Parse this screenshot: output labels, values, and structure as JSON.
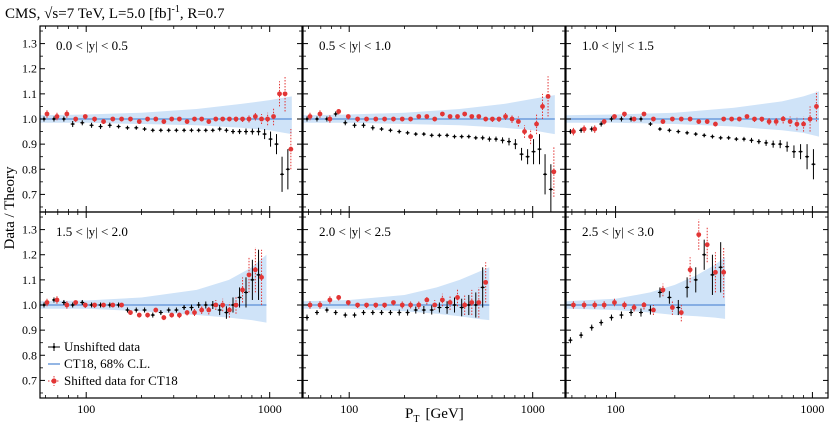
{
  "header": {
    "title": "CMS, √s=7 TeV, L=5.0 [fb]",
    "title_sup": "-1",
    "title_tail": ", R=0.7"
  },
  "axes": {
    "ylabel": "Data / Theory",
    "xlabel": "P",
    "xlabel_sub": "T",
    "xlabel_unit": "[GeV]",
    "ylim": [
      0.63,
      1.37
    ],
    "yticks": [
      0.7,
      0.8,
      0.9,
      1.0,
      1.1,
      1.2,
      1.3
    ],
    "xscale": "log",
    "xlim_panels": [
      [
        56,
        1500
      ],
      [
        56,
        1500
      ],
      [
        56,
        1200
      ]
    ],
    "xticks": [
      100,
      1000
    ]
  },
  "legend": {
    "placement": "bottom-left of panel 4",
    "entries": [
      {
        "key": "unshifted",
        "label": "Unshifted data",
        "color": "#000000"
      },
      {
        "key": "theory",
        "label": "CT18, 68% C.L.",
        "color": "#5b8fd6"
      },
      {
        "key": "shifted",
        "label": "Shifted data for CT18",
        "color": "#e23535"
      }
    ]
  },
  "colors": {
    "band": "#cfe3f8",
    "theory_line": "#5b8fd6",
    "unshifted": "#000000",
    "shifted": "#e23535",
    "shifted_err": "#e23535"
  },
  "chart_data": [
    {
      "type": "scatter",
      "label": "0.0 < |y| < 0.5",
      "x": [
        60,
        68,
        77,
        86,
        97,
        109,
        122,
        137,
        153,
        171,
        191,
        212,
        235,
        260,
        287,
        316,
        348,
        382,
        418,
        457,
        499,
        544,
        592,
        643,
        698,
        757,
        820,
        886,
        956,
        1030,
        1110,
        1190,
        1280
      ],
      "unshifted": [
        1.0,
        1.0,
        1.0,
        0.98,
        0.985,
        0.975,
        0.97,
        0.975,
        0.97,
        0.965,
        0.965,
        0.96,
        0.955,
        0.955,
        0.955,
        0.955,
        0.955,
        0.955,
        0.955,
        0.955,
        0.955,
        0.96,
        0.955,
        0.95,
        0.95,
        0.95,
        0.95,
        0.95,
        0.94,
        0.92,
        0.9,
        0.78,
        0.8
      ],
      "unshifted_err": [
        0.01,
        0.01,
        0.01,
        0.012,
        0.01,
        0.01,
        0.01,
        0.01,
        0.008,
        0.008,
        0.008,
        0.008,
        0.008,
        0.008,
        0.008,
        0.008,
        0.008,
        0.008,
        0.008,
        0.008,
        0.008,
        0.009,
        0.009,
        0.01,
        0.01,
        0.012,
        0.012,
        0.015,
        0.02,
        0.03,
        0.04,
        0.07,
        0.08
      ],
      "shifted": [
        1.02,
        1.01,
        1.02,
        1.0,
        1.01,
        1.0,
        0.99,
        1.0,
        1.0,
        1.0,
        0.99,
        1.0,
        1.0,
        0.99,
        1.0,
        1.0,
        0.99,
        1.0,
        1.0,
        0.99,
        1.0,
        1.0,
        1.0,
        1.0,
        1.0,
        1.0,
        1.01,
        1.0,
        1.0,
        1.01,
        1.1,
        1.1,
        0.88
      ],
      "shifted_err": [
        0.015,
        0.015,
        0.015,
        0.012,
        0.012,
        0.012,
        0.01,
        0.01,
        0.01,
        0.01,
        0.01,
        0.01,
        0.01,
        0.01,
        0.01,
        0.01,
        0.01,
        0.01,
        0.01,
        0.01,
        0.01,
        0.01,
        0.01,
        0.012,
        0.012,
        0.014,
        0.016,
        0.02,
        0.025,
        0.035,
        0.05,
        0.07,
        0.08
      ],
      "band_x": [
        56,
        100,
        200,
        400,
        700,
        1000,
        1200,
        1320
      ],
      "band_lo": [
        0.985,
        0.985,
        0.98,
        0.975,
        0.965,
        0.955,
        0.945,
        0.94
      ],
      "band_hi": [
        1.015,
        1.018,
        1.025,
        1.04,
        1.06,
        1.075,
        1.085,
        1.09
      ],
      "band_xmax": 1320
    },
    {
      "type": "scatter",
      "label": "0.5 < |y| < 1.0",
      "x": [
        60,
        68,
        77,
        86,
        97,
        109,
        122,
        137,
        153,
        171,
        191,
        212,
        235,
        260,
        287,
        316,
        348,
        382,
        418,
        457,
        499,
        544,
        592,
        643,
        698,
        757,
        820,
        886,
        956,
        1030,
        1110,
        1190,
        1280
      ],
      "unshifted": [
        1.0,
        1.0,
        1.0,
        1.02,
        0.985,
        0.975,
        0.975,
        0.965,
        0.96,
        0.955,
        0.95,
        0.945,
        0.94,
        0.94,
        0.935,
        0.935,
        0.935,
        0.93,
        0.93,
        0.93,
        0.925,
        0.925,
        0.92,
        0.92,
        0.915,
        0.91,
        0.9,
        0.86,
        0.85,
        0.87,
        0.88,
        0.78,
        0.72
      ],
      "unshifted_err": [
        0.01,
        0.01,
        0.01,
        0.01,
        0.01,
        0.01,
        0.01,
        0.01,
        0.008,
        0.008,
        0.008,
        0.008,
        0.008,
        0.008,
        0.008,
        0.008,
        0.008,
        0.008,
        0.008,
        0.008,
        0.008,
        0.009,
        0.01,
        0.01,
        0.012,
        0.015,
        0.02,
        0.025,
        0.03,
        0.05,
        0.06,
        0.08,
        0.1
      ],
      "shifted": [
        1.01,
        1.02,
        1.0,
        1.03,
        1.01,
        1.0,
        1.0,
        1.0,
        1.0,
        1.0,
        1.0,
        1.0,
        1.01,
        1.01,
        1.0,
        1.02,
        1.01,
        1.01,
        1.02,
        1.01,
        1.01,
        1.0,
        1.0,
        1.0,
        1.01,
        1.0,
        0.99,
        0.95,
        0.93,
        0.98,
        1.05,
        1.09,
        0.79
      ],
      "shifted_err": [
        0.015,
        0.015,
        0.015,
        0.012,
        0.012,
        0.012,
        0.01,
        0.01,
        0.01,
        0.01,
        0.01,
        0.01,
        0.01,
        0.01,
        0.01,
        0.01,
        0.01,
        0.01,
        0.01,
        0.01,
        0.01,
        0.01,
        0.012,
        0.012,
        0.014,
        0.016,
        0.02,
        0.025,
        0.03,
        0.04,
        0.05,
        0.08,
        0.1
      ],
      "band_x": [
        56,
        100,
        200,
        400,
        700,
        1000,
        1200,
        1320
      ],
      "band_lo": [
        0.985,
        0.985,
        0.98,
        0.975,
        0.965,
        0.955,
        0.945,
        0.94
      ],
      "band_hi": [
        1.015,
        1.018,
        1.025,
        1.04,
        1.06,
        1.08,
        1.09,
        1.095
      ],
      "band_xmax": 1320
    },
    {
      "type": "scatter",
      "label": "1.0 < |y| < 1.5",
      "x": [
        60,
        68,
        77,
        86,
        97,
        109,
        122,
        137,
        153,
        171,
        191,
        212,
        235,
        260,
        287,
        316,
        348,
        382,
        418,
        457,
        499,
        544,
        592,
        643,
        698,
        757,
        820,
        886,
        956,
        1030
      ],
      "unshifted": [
        0.95,
        0.955,
        0.96,
        0.98,
        1.0,
        1.0,
        1.0,
        1.0,
        0.98,
        0.96,
        0.955,
        0.95,
        0.945,
        0.94,
        0.935,
        0.93,
        0.925,
        0.925,
        0.92,
        0.92,
        0.915,
        0.91,
        0.905,
        0.9,
        0.9,
        0.89,
        0.87,
        0.87,
        0.85,
        0.82
      ],
      "unshifted_err": [
        0.01,
        0.01,
        0.01,
        0.01,
        0.01,
        0.01,
        0.01,
        0.01,
        0.008,
        0.008,
        0.008,
        0.008,
        0.008,
        0.008,
        0.008,
        0.008,
        0.008,
        0.008,
        0.008,
        0.009,
        0.01,
        0.01,
        0.012,
        0.014,
        0.016,
        0.02,
        0.025,
        0.03,
        0.05,
        0.06
      ],
      "shifted": [
        0.95,
        0.96,
        0.96,
        0.99,
        1.01,
        1.02,
        1.0,
        1.02,
        1.0,
        0.99,
        1.0,
        1.0,
        1.0,
        0.99,
        0.99,
        0.98,
        1.0,
        1.0,
        1.0,
        1.01,
        1.0,
        1.0,
        0.99,
        0.99,
        1.0,
        0.99,
        0.98,
        0.98,
        1.0,
        1.05
      ],
      "shifted_err": [
        0.015,
        0.015,
        0.015,
        0.012,
        0.012,
        0.012,
        0.01,
        0.01,
        0.01,
        0.01,
        0.01,
        0.01,
        0.01,
        0.01,
        0.01,
        0.01,
        0.01,
        0.01,
        0.01,
        0.01,
        0.012,
        0.012,
        0.014,
        0.016,
        0.018,
        0.02,
        0.025,
        0.03,
        0.05,
        0.06
      ],
      "band_x": [
        56,
        100,
        200,
        400,
        700,
        900,
        1080
      ],
      "band_lo": [
        0.985,
        0.985,
        0.98,
        0.97,
        0.955,
        0.945,
        0.93
      ],
      "band_hi": [
        1.015,
        1.018,
        1.025,
        1.045,
        1.07,
        1.09,
        1.11
      ],
      "band_xmax": 1080
    },
    {
      "type": "scatter",
      "label": "1.5 < |y| < 2.0",
      "x": [
        60,
        68,
        77,
        86,
        97,
        109,
        122,
        137,
        153,
        171,
        191,
        212,
        235,
        260,
        287,
        316,
        348,
        382,
        418,
        457,
        499,
        544,
        592,
        643,
        698,
        757,
        820,
        886
      ],
      "unshifted": [
        1.0,
        1.02,
        1.01,
        1.0,
        1.01,
        1.0,
        1.0,
        1.0,
        1.0,
        0.98,
        0.98,
        0.98,
        0.96,
        0.97,
        0.98,
        0.98,
        0.99,
        0.99,
        1.0,
        1.0,
        1.0,
        0.98,
        0.97,
        1.0,
        1.03,
        1.05,
        1.1,
        1.12
      ],
      "unshifted_err": [
        0.01,
        0.01,
        0.01,
        0.01,
        0.01,
        0.01,
        0.01,
        0.01,
        0.01,
        0.01,
        0.01,
        0.01,
        0.01,
        0.01,
        0.01,
        0.01,
        0.01,
        0.012,
        0.012,
        0.014,
        0.016,
        0.02,
        0.025,
        0.03,
        0.04,
        0.06,
        0.08,
        0.1
      ],
      "shifted": [
        1.01,
        1.02,
        1.0,
        1.01,
        1.0,
        1.0,
        1.0,
        1.0,
        1.0,
        0.97,
        0.96,
        0.96,
        0.98,
        0.95,
        0.96,
        0.96,
        0.97,
        0.97,
        0.98,
        0.98,
        1.0,
        1.0,
        0.98,
        1.0,
        1.06,
        1.12,
        1.14,
        1.11
      ],
      "shifted_err": [
        0.015,
        0.015,
        0.015,
        0.012,
        0.012,
        0.012,
        0.01,
        0.01,
        0.01,
        0.01,
        0.01,
        0.01,
        0.01,
        0.01,
        0.01,
        0.012,
        0.012,
        0.014,
        0.016,
        0.018,
        0.02,
        0.025,
        0.03,
        0.035,
        0.05,
        0.07,
        0.09,
        0.11
      ],
      "band_x": [
        56,
        100,
        200,
        400,
        600,
        800,
        960
      ],
      "band_lo": [
        0.985,
        0.985,
        0.975,
        0.96,
        0.95,
        0.94,
        0.93
      ],
      "band_hi": [
        1.015,
        1.018,
        1.03,
        1.06,
        1.1,
        1.15,
        1.2
      ],
      "band_xmax": 960
    },
    {
      "type": "scatter",
      "label": "2.0 < |y| < 2.5",
      "x": [
        60,
        68,
        77,
        86,
        97,
        109,
        122,
        137,
        153,
        171,
        191,
        212,
        235,
        260,
        287,
        316,
        348,
        382,
        418,
        457,
        499,
        544
      ],
      "unshifted": [
        0.95,
        0.97,
        0.98,
        0.97,
        0.96,
        0.96,
        0.97,
        0.97,
        0.97,
        0.97,
        0.97,
        0.97,
        0.98,
        0.98,
        0.98,
        0.99,
        0.99,
        1.0,
        0.99,
        1.0,
        1.0,
        1.07
      ],
      "unshifted_err": [
        0.012,
        0.01,
        0.01,
        0.01,
        0.01,
        0.01,
        0.01,
        0.01,
        0.01,
        0.01,
        0.012,
        0.012,
        0.014,
        0.016,
        0.018,
        0.02,
        0.025,
        0.03,
        0.035,
        0.04,
        0.05,
        0.08
      ],
      "shifted": [
        1.0,
        1.0,
        1.02,
        1.03,
        1.01,
        1.0,
        1.0,
        1.0,
        1.0,
        1.01,
        1.0,
        1.0,
        1.0,
        1.02,
        1.0,
        1.02,
        1.01,
        1.03,
        1.0,
        1.01,
        1.01,
        1.09
      ],
      "shifted_err": [
        0.015,
        0.015,
        0.015,
        0.012,
        0.012,
        0.012,
        0.012,
        0.012,
        0.012,
        0.012,
        0.014,
        0.014,
        0.016,
        0.018,
        0.02,
        0.025,
        0.03,
        0.035,
        0.04,
        0.05,
        0.06,
        0.08
      ],
      "band_x": [
        56,
        100,
        200,
        300,
        400,
        500,
        580
      ],
      "band_lo": [
        0.985,
        0.985,
        0.975,
        0.965,
        0.955,
        0.945,
        0.94
      ],
      "band_hi": [
        1.015,
        1.02,
        1.04,
        1.07,
        1.1,
        1.13,
        1.15
      ],
      "band_xmax": 580
    },
    {
      "type": "scatter",
      "label": "2.5 < |y| < 3.0",
      "x": [
        60,
        68,
        77,
        86,
        97,
        109,
        122,
        137,
        153,
        171,
        191,
        212,
        235,
        260,
        287,
        316,
        348
      ],
      "unshifted": [
        0.86,
        0.88,
        0.91,
        0.93,
        0.95,
        0.96,
        0.97,
        0.97,
        0.98,
        1.05,
        1.03,
        0.99,
        1.07,
        1.1,
        1.2,
        1.12,
        1.15
      ],
      "unshifted_err": [
        0.012,
        0.012,
        0.012,
        0.012,
        0.012,
        0.014,
        0.014,
        0.016,
        0.018,
        0.02,
        0.025,
        0.03,
        0.04,
        0.05,
        0.06,
        0.08,
        0.1
      ],
      "shifted": [
        1.0,
        1.0,
        1.0,
        1.0,
        1.01,
        1.0,
        0.99,
        1.0,
        0.98,
        1.06,
        0.99,
        0.97,
        1.14,
        1.28,
        1.24,
        1.13,
        1.13
      ],
      "shifted_err": [
        0.015,
        0.015,
        0.015,
        0.015,
        0.015,
        0.016,
        0.016,
        0.018,
        0.02,
        0.025,
        0.03,
        0.035,
        0.05,
        0.06,
        0.07,
        0.08,
        0.1
      ],
      "band_x": [
        56,
        100,
        150,
        200,
        260,
        320,
        360
      ],
      "band_lo": [
        0.985,
        0.98,
        0.97,
        0.96,
        0.955,
        0.95,
        0.945
      ],
      "band_hi": [
        1.015,
        1.025,
        1.05,
        1.08,
        1.12,
        1.16,
        1.19
      ],
      "band_xmax": 360
    }
  ]
}
